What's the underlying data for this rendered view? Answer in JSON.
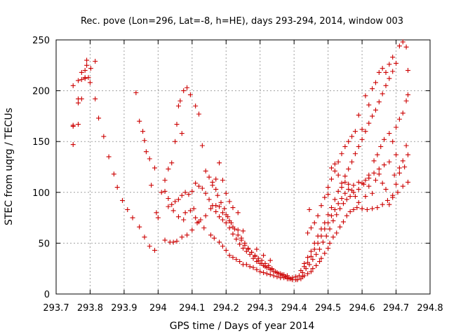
{
  "chart_data": {
    "type": "scatter",
    "title": "Rec. pove (Lon=296, Lat=-8, h=HE), days 293-294, 2014, window 003",
    "xlabel": "GPS time / Days of year 2014",
    "ylabel": "STEC from uqrg / TECUs",
    "xlim": [
      293.7,
      294.8
    ],
    "ylim": [
      0,
      250
    ],
    "xticks": [
      {
        "value": 293.7,
        "label": "293.7"
      },
      {
        "value": 293.8,
        "label": "293.8"
      },
      {
        "value": 293.9,
        "label": "293.9"
      },
      {
        "value": 294.0,
        "label": "294"
      },
      {
        "value": 294.1,
        "label": "294.1"
      },
      {
        "value": 294.2,
        "label": "294.2"
      },
      {
        "value": 294.3,
        "label": "294.3"
      },
      {
        "value": 294.4,
        "label": "294.4"
      },
      {
        "value": 294.5,
        "label": "294.5"
      },
      {
        "value": 294.6,
        "label": "294.6"
      },
      {
        "value": 294.7,
        "label": "294.7"
      },
      {
        "value": 294.8,
        "label": "294.8"
      }
    ],
    "yticks": [
      {
        "value": 0,
        "label": "0"
      },
      {
        "value": 50,
        "label": "50"
      },
      {
        "value": 100,
        "label": "100"
      },
      {
        "value": 150,
        "label": "150"
      },
      {
        "value": 200,
        "label": "200"
      },
      {
        "value": 250,
        "label": "250"
      }
    ],
    "grid": true,
    "marker": "+",
    "color": "#cc0000",
    "points": [
      [
        293.75,
        147
      ],
      [
        293.75,
        165
      ],
      [
        293.75,
        166
      ],
      [
        293.75,
        205
      ],
      [
        293.765,
        167
      ],
      [
        293.765,
        188
      ],
      [
        293.765,
        192
      ],
      [
        293.765,
        210
      ],
      [
        293.775,
        192
      ],
      [
        293.775,
        211
      ],
      [
        293.775,
        218
      ],
      [
        293.785,
        212
      ],
      [
        293.785,
        213
      ],
      [
        293.785,
        220
      ],
      [
        293.79,
        225
      ],
      [
        293.79,
        230
      ],
      [
        293.795,
        213
      ],
      [
        293.8,
        208
      ],
      [
        293.802,
        222
      ],
      [
        293.815,
        229
      ],
      [
        293.815,
        192
      ],
      [
        293.825,
        173
      ],
      [
        293.84,
        155
      ],
      [
        293.855,
        135
      ],
      [
        293.87,
        118
      ],
      [
        293.88,
        105
      ],
      [
        293.895,
        92
      ],
      [
        293.91,
        83
      ],
      [
        293.925,
        75
      ],
      [
        293.945,
        66
      ],
      [
        293.96,
        56
      ],
      [
        293.975,
        47
      ],
      [
        293.99,
        43
      ],
      [
        293.935,
        198
      ],
      [
        293.945,
        170
      ],
      [
        293.955,
        160
      ],
      [
        293.96,
        151
      ],
      [
        293.965,
        140
      ],
      [
        293.975,
        133
      ],
      [
        293.98,
        107
      ],
      [
        293.99,
        124
      ],
      [
        293.995,
        80
      ],
      [
        294.0,
        75
      ],
      [
        294.02,
        101
      ],
      [
        294.03,
        94
      ],
      [
        294.045,
        82
      ],
      [
        294.06,
        76
      ],
      [
        294.075,
        73
      ],
      [
        294.08,
        80
      ],
      [
        294.095,
        82
      ],
      [
        294.105,
        84
      ],
      [
        294.11,
        75
      ],
      [
        294.12,
        71
      ],
      [
        294.135,
        65
      ],
      [
        294.155,
        58
      ],
      [
        294.165,
        55
      ],
      [
        294.18,
        51
      ],
      [
        294.19,
        47
      ],
      [
        294.2,
        43
      ],
      [
        294.21,
        38
      ],
      [
        294.22,
        36
      ],
      [
        294.23,
        34
      ],
      [
        294.24,
        32
      ],
      [
        294.25,
        29
      ],
      [
        294.26,
        29
      ],
      [
        294.27,
        27
      ],
      [
        294.28,
        26
      ],
      [
        294.29,
        24
      ],
      [
        294.3,
        22
      ],
      [
        294.31,
        21
      ],
      [
        294.32,
        20
      ],
      [
        294.33,
        19
      ],
      [
        294.34,
        18
      ],
      [
        294.35,
        17
      ],
      [
        294.36,
        16
      ],
      [
        294.37,
        16
      ],
      [
        294.38,
        15
      ],
      [
        294.39,
        15
      ],
      [
        294.01,
        100
      ],
      [
        294.02,
        112
      ],
      [
        294.03,
        123
      ],
      [
        294.04,
        129
      ],
      [
        294.05,
        150
      ],
      [
        294.055,
        167
      ],
      [
        294.06,
        185
      ],
      [
        294.065,
        190
      ],
      [
        294.07,
        158
      ],
      [
        294.075,
        200
      ],
      [
        294.085,
        203
      ],
      [
        294.095,
        196
      ],
      [
        294.11,
        185
      ],
      [
        294.12,
        177
      ],
      [
        294.13,
        146
      ],
      [
        294.14,
        121
      ],
      [
        294.15,
        115
      ],
      [
        294.16,
        107
      ],
      [
        294.17,
        103
      ],
      [
        294.175,
        97
      ],
      [
        294.185,
        90
      ],
      [
        294.195,
        84
      ],
      [
        294.205,
        76
      ],
      [
        294.215,
        70
      ],
      [
        294.225,
        64
      ],
      [
        294.235,
        58
      ],
      [
        294.245,
        53
      ],
      [
        294.255,
        48
      ],
      [
        294.265,
        44
      ],
      [
        294.275,
        41
      ],
      [
        294.285,
        38
      ],
      [
        294.295,
        35
      ],
      [
        294.305,
        33
      ],
      [
        294.315,
        30
      ],
      [
        294.325,
        28
      ],
      [
        294.335,
        25
      ],
      [
        294.345,
        22
      ],
      [
        294.355,
        20
      ],
      [
        294.365,
        18
      ],
      [
        294.375,
        17
      ],
      [
        294.385,
        16
      ],
      [
        294.395,
        16
      ],
      [
        294.405,
        17
      ],
      [
        294.03,
        86
      ],
      [
        294.04,
        88
      ],
      [
        294.05,
        91
      ],
      [
        294.06,
        93
      ],
      [
        294.07,
        97
      ],
      [
        294.08,
        100
      ],
      [
        294.09,
        98
      ],
      [
        294.1,
        101
      ],
      [
        294.11,
        109
      ],
      [
        294.12,
        106
      ],
      [
        294.13,
        104
      ],
      [
        294.14,
        99
      ],
      [
        294.15,
        93
      ],
      [
        294.16,
        87
      ],
      [
        294.17,
        81
      ],
      [
        294.18,
        76
      ],
      [
        294.19,
        73
      ],
      [
        294.2,
        70
      ],
      [
        294.21,
        65
      ],
      [
        294.22,
        59
      ],
      [
        294.23,
        54
      ],
      [
        294.24,
        49
      ],
      [
        294.25,
        45
      ],
      [
        294.26,
        42
      ],
      [
        294.27,
        39
      ],
      [
        294.28,
        35
      ],
      [
        294.29,
        32
      ],
      [
        294.3,
        30
      ],
      [
        294.31,
        28
      ],
      [
        294.32,
        26
      ],
      [
        294.33,
        24
      ],
      [
        294.34,
        22
      ],
      [
        294.35,
        21
      ],
      [
        294.36,
        20
      ],
      [
        294.37,
        19
      ],
      [
        294.38,
        18
      ],
      [
        294.02,
        53
      ],
      [
        294.035,
        51
      ],
      [
        294.045,
        51
      ],
      [
        294.055,
        52
      ],
      [
        294.07,
        56
      ],
      [
        294.085,
        58
      ],
      [
        294.1,
        63
      ],
      [
        294.115,
        70
      ],
      [
        294.125,
        73
      ],
      [
        294.14,
        77
      ],
      [
        294.155,
        84
      ],
      [
        294.17,
        87
      ],
      [
        294.18,
        86
      ],
      [
        294.19,
        80
      ],
      [
        294.2,
        78
      ],
      [
        294.21,
        72
      ],
      [
        294.22,
        66
      ],
      [
        294.235,
        63
      ],
      [
        294.245,
        55
      ],
      [
        294.255,
        50
      ],
      [
        294.265,
        45
      ],
      [
        294.275,
        41
      ],
      [
        294.285,
        37
      ],
      [
        294.295,
        33
      ],
      [
        294.305,
        30
      ],
      [
        294.315,
        27
      ],
      [
        294.325,
        26
      ],
      [
        294.335,
        24
      ],
      [
        294.345,
        22
      ],
      [
        294.355,
        20
      ],
      [
        294.365,
        19
      ],
      [
        294.375,
        17
      ],
      [
        294.385,
        15
      ],
      [
        294.395,
        14
      ],
      [
        294.405,
        14
      ],
      [
        294.16,
        110
      ],
      [
        294.17,
        113
      ],
      [
        294.18,
        129
      ],
      [
        294.19,
        112
      ],
      [
        294.2,
        99
      ],
      [
        294.21,
        91
      ],
      [
        294.22,
        85
      ],
      [
        294.235,
        80
      ],
      [
        294.25,
        62
      ],
      [
        294.29,
        44
      ],
      [
        294.31,
        38
      ],
      [
        294.33,
        33
      ],
      [
        294.41,
        14
      ],
      [
        294.42,
        15
      ],
      [
        294.425,
        17
      ],
      [
        294.43,
        18
      ],
      [
        294.44,
        20
      ],
      [
        294.45,
        22
      ],
      [
        294.455,
        25
      ],
      [
        294.465,
        28
      ],
      [
        294.475,
        32
      ],
      [
        294.48,
        35
      ],
      [
        294.49,
        40
      ],
      [
        294.5,
        45
      ],
      [
        294.505,
        50
      ],
      [
        294.515,
        56
      ],
      [
        294.525,
        60
      ],
      [
        294.535,
        66
      ],
      [
        294.545,
        71
      ],
      [
        294.555,
        77
      ],
      [
        294.565,
        81
      ],
      [
        294.575,
        83
      ],
      [
        294.585,
        85
      ],
      [
        294.6,
        84
      ],
      [
        294.615,
        83
      ],
      [
        294.63,
        84
      ],
      [
        294.645,
        85
      ],
      [
        294.66,
        88
      ],
      [
        294.675,
        92
      ],
      [
        294.69,
        97
      ],
      [
        294.705,
        100
      ],
      [
        294.72,
        106
      ],
      [
        294.735,
        110
      ],
      [
        294.415,
        18
      ],
      [
        294.425,
        21
      ],
      [
        294.435,
        25
      ],
      [
        294.445,
        29
      ],
      [
        294.455,
        34
      ],
      [
        294.465,
        39
      ],
      [
        294.475,
        44
      ],
      [
        294.485,
        51
      ],
      [
        294.495,
        57
      ],
      [
        294.505,
        64
      ],
      [
        294.515,
        72
      ],
      [
        294.525,
        78
      ],
      [
        294.535,
        84
      ],
      [
        294.545,
        89
      ],
      [
        294.555,
        93
      ],
      [
        294.565,
        96
      ],
      [
        294.575,
        100
      ],
      [
        294.59,
        103
      ],
      [
        294.605,
        108
      ],
      [
        294.62,
        114
      ],
      [
        294.635,
        119
      ],
      [
        294.65,
        123
      ],
      [
        294.665,
        127
      ],
      [
        294.68,
        130
      ],
      [
        294.695,
        117
      ],
      [
        294.71,
        119
      ],
      [
        294.725,
        125
      ],
      [
        294.735,
        137
      ],
      [
        294.42,
        23
      ],
      [
        294.43,
        27
      ],
      [
        294.44,
        31
      ],
      [
        294.45,
        37
      ],
      [
        294.46,
        44
      ],
      [
        294.47,
        50
      ],
      [
        294.48,
        57
      ],
      [
        294.49,
        64
      ],
      [
        294.5,
        70
      ],
      [
        294.51,
        77
      ],
      [
        294.52,
        83
      ],
      [
        294.53,
        89
      ],
      [
        294.54,
        94
      ],
      [
        294.55,
        99
      ],
      [
        294.56,
        103
      ],
      [
        294.575,
        107
      ],
      [
        294.59,
        110
      ],
      [
        294.6,
        109
      ],
      [
        294.61,
        112
      ],
      [
        294.62,
        117
      ],
      [
        294.635,
        131
      ],
      [
        294.645,
        137
      ],
      [
        294.655,
        145
      ],
      [
        294.665,
        152
      ],
      [
        294.68,
        158
      ],
      [
        294.69,
        150
      ],
      [
        294.7,
        164
      ],
      [
        294.71,
        172
      ],
      [
        294.72,
        178
      ],
      [
        294.73,
        190
      ],
      [
        294.735,
        196
      ],
      [
        294.43,
        30
      ],
      [
        294.44,
        36
      ],
      [
        294.45,
        42
      ],
      [
        294.46,
        50
      ],
      [
        294.47,
        57
      ],
      [
        294.48,
        64
      ],
      [
        294.49,
        70
      ],
      [
        294.5,
        78
      ],
      [
        294.51,
        85
      ],
      [
        294.52,
        93
      ],
      [
        294.53,
        101
      ],
      [
        294.54,
        109
      ],
      [
        294.55,
        116
      ],
      [
        294.56,
        123
      ],
      [
        294.57,
        130
      ],
      [
        294.58,
        138
      ],
      [
        294.59,
        145
      ],
      [
        294.6,
        152
      ],
      [
        294.61,
        160
      ],
      [
        294.62,
        168
      ],
      [
        294.63,
        175
      ],
      [
        294.64,
        181
      ],
      [
        294.65,
        189
      ],
      [
        294.66,
        197
      ],
      [
        294.67,
        205
      ],
      [
        294.68,
        212
      ],
      [
        294.69,
        219
      ],
      [
        294.7,
        227
      ],
      [
        294.71,
        244
      ],
      [
        294.72,
        248
      ],
      [
        294.73,
        243
      ],
      [
        294.735,
        220
      ],
      [
        294.44,
        60
      ],
      [
        294.45,
        65
      ],
      [
        294.46,
        70
      ],
      [
        294.47,
        77
      ],
      [
        294.48,
        87
      ],
      [
        294.49,
        95
      ],
      [
        294.5,
        105
      ],
      [
        294.51,
        113
      ],
      [
        294.52,
        121
      ],
      [
        294.53,
        130
      ],
      [
        294.54,
        138
      ],
      [
        294.55,
        145
      ],
      [
        294.56,
        150
      ],
      [
        294.57,
        155
      ],
      [
        294.58,
        160
      ],
      [
        294.59,
        176
      ],
      [
        294.6,
        162
      ],
      [
        294.61,
        195
      ],
      [
        294.62,
        186
      ],
      [
        294.63,
        202
      ],
      [
        294.64,
        208
      ],
      [
        294.65,
        218
      ],
      [
        294.66,
        222
      ],
      [
        294.67,
        218
      ],
      [
        294.68,
        226
      ],
      [
        294.69,
        233
      ],
      [
        294.7,
        137
      ],
      [
        294.71,
        124
      ],
      [
        294.72,
        131
      ],
      [
        294.73,
        146
      ],
      [
        294.445,
        83
      ],
      [
        294.5,
        98
      ],
      [
        294.51,
        124
      ],
      [
        294.52,
        128
      ],
      [
        294.53,
        117
      ],
      [
        294.54,
        105
      ],
      [
        294.55,
        110
      ],
      [
        294.56,
        108
      ],
      [
        294.57,
        102
      ],
      [
        294.58,
        96
      ],
      [
        294.59,
        90
      ],
      [
        294.6,
        84
      ],
      [
        294.61,
        96
      ],
      [
        294.62,
        106
      ],
      [
        294.63,
        99
      ],
      [
        294.64,
        112
      ],
      [
        294.65,
        118
      ],
      [
        294.66,
        109
      ],
      [
        294.67,
        103
      ],
      [
        294.68,
        88
      ],
      [
        294.69,
        95
      ],
      [
        294.7,
        108
      ]
    ]
  }
}
